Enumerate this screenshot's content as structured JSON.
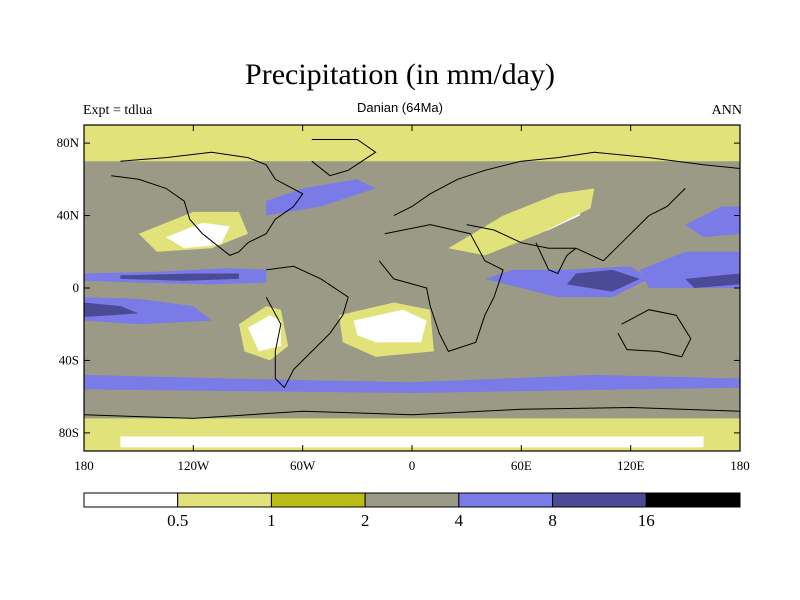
{
  "header": {
    "title": "Precipitation (in mm/day)",
    "subtitle": "Danian (64Ma)",
    "left_label": "Expt = tdlua",
    "right_label": "ANN"
  },
  "axes": {
    "lat_ticks": [
      {
        "lat": 80,
        "label": "80N"
      },
      {
        "lat": 40,
        "label": "40N"
      },
      {
        "lat": 0,
        "label": "0"
      },
      {
        "lat": -40,
        "label": "40S"
      },
      {
        "lat": -80,
        "label": "80S"
      }
    ],
    "lon_ticks": [
      {
        "lon": -180,
        "label": "180"
      },
      {
        "lon": -120,
        "label": "120W"
      },
      {
        "lon": -60,
        "label": "60W"
      },
      {
        "lon": 0,
        "label": "0"
      },
      {
        "lon": 60,
        "label": "60E"
      },
      {
        "lon": 120,
        "label": "120E"
      },
      {
        "lon": 180,
        "label": "180"
      }
    ],
    "lon_range": [
      -180,
      180
    ],
    "lat_range": [
      -90,
      90
    ]
  },
  "colorbar": {
    "colors": [
      "#ffffff",
      "#e2e27a",
      "#bcbc18",
      "#9a9a86",
      "#7b7be8",
      "#4a4a96",
      "#000000"
    ],
    "boundaries": [
      "0.5",
      "1",
      "2",
      "4",
      "8",
      "16"
    ]
  },
  "palette": {
    "very_dry": "#ffffff",
    "dry": "#e2e27a",
    "semi_dry": "#bcbc18",
    "moderate": "#9a9a86",
    "wet": "#7b7be8",
    "very_wet": "#4a4a96",
    "extreme": "#000000",
    "coastline": "#000000"
  },
  "regions": [
    {
      "name": "itcz-pacific-north",
      "level": 4,
      "pts": [
        [
          -180,
          8
        ],
        [
          -140,
          9
        ],
        [
          -100,
          11
        ],
        [
          -80,
          10
        ],
        [
          -80,
          3
        ],
        [
          -110,
          2
        ],
        [
          -150,
          3
        ],
        [
          -180,
          4
        ]
      ]
    },
    {
      "name": "itcz-pacific-core",
      "level": 5,
      "pts": [
        [
          -160,
          7
        ],
        [
          -120,
          8
        ],
        [
          -95,
          8
        ],
        [
          -95,
          5
        ],
        [
          -125,
          4
        ],
        [
          -160,
          5
        ]
      ]
    },
    {
      "name": "spcz",
      "level": 4,
      "pts": [
        [
          -180,
          -5
        ],
        [
          -150,
          -6
        ],
        [
          -120,
          -10
        ],
        [
          -110,
          -18
        ],
        [
          -150,
          -20
        ],
        [
          -180,
          -18
        ]
      ]
    },
    {
      "name": "spcz-core",
      "level": 5,
      "pts": [
        [
          -180,
          -8
        ],
        [
          -160,
          -10
        ],
        [
          -150,
          -14
        ],
        [
          -180,
          -16
        ]
      ]
    },
    {
      "name": "south-america-dry",
      "level": 1,
      "pts": [
        [
          -95,
          -20
        ],
        [
          -80,
          -10
        ],
        [
          -72,
          -12
        ],
        [
          -68,
          -32
        ],
        [
          -78,
          -40
        ],
        [
          -92,
          -35
        ]
      ]
    },
    {
      "name": "south-america-arid",
      "level": 0,
      "pts": [
        [
          -90,
          -22
        ],
        [
          -78,
          -15
        ],
        [
          -72,
          -18
        ],
        [
          -72,
          -32
        ],
        [
          -84,
          -35
        ]
      ]
    },
    {
      "name": "south-atlantic-dry",
      "level": 1,
      "pts": [
        [
          -40,
          -15
        ],
        [
          -10,
          -8
        ],
        [
          10,
          -12
        ],
        [
          12,
          -35
        ],
        [
          -20,
          -38
        ],
        [
          -38,
          -30
        ]
      ]
    },
    {
      "name": "south-atlantic-arid",
      "level": 0,
      "pts": [
        [
          -32,
          -18
        ],
        [
          -5,
          -12
        ],
        [
          8,
          -18
        ],
        [
          5,
          -30
        ],
        [
          -20,
          -30
        ],
        [
          -30,
          -26
        ]
      ]
    },
    {
      "name": "north-america-dry",
      "level": 1,
      "pts": [
        [
          -150,
          30
        ],
        [
          -120,
          42
        ],
        [
          -95,
          42
        ],
        [
          -90,
          30
        ],
        [
          -110,
          22
        ],
        [
          -140,
          20
        ]
      ]
    },
    {
      "name": "north-america-arid",
      "level": 0,
      "pts": [
        [
          -135,
          28
        ],
        [
          -115,
          36
        ],
        [
          -100,
          34
        ],
        [
          -105,
          24
        ],
        [
          -125,
          22
        ]
      ]
    },
    {
      "name": "asia-arid",
      "level": 0,
      "pts": [
        [
          30,
          28
        ],
        [
          60,
          38
        ],
        [
          85,
          48
        ],
        [
          95,
          50
        ],
        [
          92,
          40
        ],
        [
          75,
          32
        ],
        [
          55,
          25
        ],
        [
          35,
          20
        ]
      ]
    },
    {
      "name": "asia-dry",
      "level": 1,
      "pts": [
        [
          20,
          22
        ],
        [
          50,
          40
        ],
        [
          80,
          52
        ],
        [
          100,
          55
        ],
        [
          98,
          44
        ],
        [
          70,
          30
        ],
        [
          40,
          18
        ]
      ]
    },
    {
      "name": "indian-ocean-wet",
      "level": 4,
      "pts": [
        [
          40,
          5
        ],
        [
          80,
          -5
        ],
        [
          110,
          -5
        ],
        [
          130,
          5
        ],
        [
          120,
          12
        ],
        [
          85,
          10
        ],
        [
          55,
          10
        ]
      ]
    },
    {
      "name": "indian-ocean-core",
      "level": 5,
      "pts": [
        [
          85,
          2
        ],
        [
          110,
          -2
        ],
        [
          125,
          5
        ],
        [
          110,
          10
        ],
        [
          90,
          8
        ]
      ]
    },
    {
      "name": "west-pacific-wet",
      "level": 4,
      "pts": [
        [
          125,
          10
        ],
        [
          150,
          20
        ],
        [
          180,
          20
        ],
        [
          180,
          0
        ],
        [
          150,
          0
        ],
        [
          130,
          0
        ]
      ]
    },
    {
      "name": "west-pacific-core",
      "level": 5,
      "pts": [
        [
          150,
          5
        ],
        [
          180,
          8
        ],
        [
          180,
          2
        ],
        [
          155,
          0
        ]
      ]
    },
    {
      "name": "north-pacific-storm",
      "level": 4,
      "pts": [
        [
          150,
          35
        ],
        [
          170,
          45
        ],
        [
          180,
          45
        ],
        [
          180,
          30
        ],
        [
          160,
          28
        ]
      ]
    },
    {
      "name": "southern-ocean-wet",
      "level": 4,
      "pts": [
        [
          -180,
          -48
        ],
        [
          -100,
          -50
        ],
        [
          0,
          -52
        ],
        [
          100,
          -48
        ],
        [
          180,
          -50
        ],
        [
          180,
          -55
        ],
        [
          0,
          -58
        ],
        [
          -180,
          -56
        ]
      ]
    },
    {
      "name": "north-atlantic-wet",
      "level": 4,
      "pts": [
        [
          -80,
          40
        ],
        [
          -50,
          45
        ],
        [
          -20,
          55
        ],
        [
          -30,
          60
        ],
        [
          -60,
          55
        ],
        [
          -80,
          48
        ]
      ]
    },
    {
      "name": "arctic-dry",
      "level": 1,
      "pts": [
        [
          -180,
          70
        ],
        [
          180,
          70
        ],
        [
          180,
          90
        ],
        [
          -180,
          90
        ]
      ]
    },
    {
      "name": "antarctic-dry",
      "level": 1,
      "pts": [
        [
          -180,
          -72
        ],
        [
          180,
          -72
        ],
        [
          180,
          -90
        ],
        [
          -180,
          -90
        ]
      ]
    },
    {
      "name": "antarctic-arid",
      "level": 0,
      "pts": [
        [
          -160,
          -82
        ],
        [
          160,
          -82
        ],
        [
          160,
          -88
        ],
        [
          -160,
          -88
        ]
      ]
    }
  ],
  "coastlines": [
    {
      "name": "north-america",
      "pts": [
        [
          -160,
          70
        ],
        [
          -135,
          72
        ],
        [
          -110,
          75
        ],
        [
          -90,
          72
        ],
        [
          -80,
          68
        ],
        [
          -75,
          60
        ],
        [
          -60,
          52
        ],
        [
          -65,
          45
        ],
        [
          -75,
          38
        ],
        [
          -80,
          30
        ],
        [
          -90,
          25
        ],
        [
          -95,
          20
        ],
        [
          -100,
          18
        ],
        [
          -105,
          22
        ],
        [
          -115,
          30
        ],
        [
          -122,
          38
        ],
        [
          -125,
          48
        ],
        [
          -135,
          55
        ],
        [
          -150,
          60
        ],
        [
          -165,
          62
        ]
      ]
    },
    {
      "name": "greenland",
      "pts": [
        [
          -55,
          82
        ],
        [
          -30,
          82
        ],
        [
          -20,
          75
        ],
        [
          -35,
          65
        ],
        [
          -45,
          62
        ],
        [
          -55,
          70
        ]
      ]
    },
    {
      "name": "south-america",
      "pts": [
        [
          -80,
          10
        ],
        [
          -65,
          12
        ],
        [
          -50,
          5
        ],
        [
          -35,
          -5
        ],
        [
          -38,
          -15
        ],
        [
          -45,
          -25
        ],
        [
          -55,
          -35
        ],
        [
          -65,
          -45
        ],
        [
          -70,
          -55
        ],
        [
          -75,
          -50
        ],
        [
          -75,
          -35
        ],
        [
          -72,
          -20
        ],
        [
          -80,
          -5
        ]
      ]
    },
    {
      "name": "africa",
      "pts": [
        [
          -15,
          30
        ],
        [
          10,
          35
        ],
        [
          32,
          30
        ],
        [
          40,
          15
        ],
        [
          50,
          10
        ],
        [
          45,
          -5
        ],
        [
          40,
          -15
        ],
        [
          35,
          -30
        ],
        [
          20,
          -35
        ],
        [
          15,
          -25
        ],
        [
          10,
          -10
        ],
        [
          8,
          0
        ],
        [
          -10,
          5
        ],
        [
          -18,
          15
        ]
      ]
    },
    {
      "name": "europe",
      "pts": [
        [
          -10,
          40
        ],
        [
          0,
          45
        ],
        [
          10,
          52
        ],
        [
          25,
          60
        ],
        [
          40,
          65
        ],
        [
          60,
          70
        ],
        [
          80,
          72
        ],
        [
          100,
          75
        ],
        [
          130,
          72
        ],
        [
          160,
          68
        ],
        [
          180,
          66
        ]
      ]
    },
    {
      "name": "eurasia-south",
      "pts": [
        [
          30,
          35
        ],
        [
          45,
          32
        ],
        [
          60,
          25
        ],
        [
          75,
          22
        ],
        [
          90,
          22
        ],
        [
          105,
          15
        ],
        [
          110,
          20
        ],
        [
          120,
          30
        ],
        [
          130,
          40
        ],
        [
          140,
          45
        ],
        [
          150,
          55
        ]
      ]
    },
    {
      "name": "india",
      "pts": [
        [
          68,
          25
        ],
        [
          75,
          10
        ],
        [
          80,
          8
        ],
        [
          85,
          18
        ],
        [
          90,
          22
        ]
      ]
    },
    {
      "name": "australia",
      "pts": [
        [
          115,
          -20
        ],
        [
          130,
          -12
        ],
        [
          145,
          -15
        ],
        [
          153,
          -28
        ],
        [
          148,
          -38
        ],
        [
          135,
          -35
        ],
        [
          118,
          -34
        ],
        [
          113,
          -25
        ]
      ]
    },
    {
      "name": "antarctica",
      "pts": [
        [
          -180,
          -70
        ],
        [
          -120,
          -72
        ],
        [
          -60,
          -68
        ],
        [
          0,
          -70
        ],
        [
          60,
          -67
        ],
        [
          120,
          -66
        ],
        [
          180,
          -68
        ]
      ]
    }
  ]
}
